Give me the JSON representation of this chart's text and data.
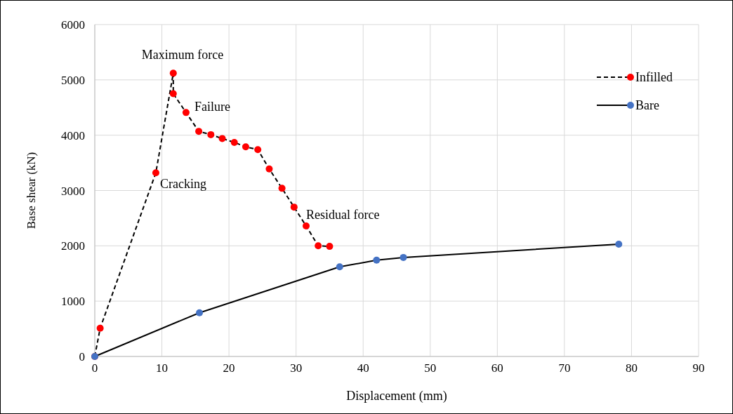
{
  "chart_data": {
    "type": "line",
    "xlabel": "Displacement (mm)",
    "ylabel": "Base shear (kN)",
    "xlim": [
      0,
      90
    ],
    "xticks": [
      0,
      10,
      20,
      30,
      40,
      50,
      60,
      70,
      80,
      90
    ],
    "ylim": [
      0,
      6000
    ],
    "yticks": [
      0,
      1000,
      2000,
      3000,
      4000,
      5000,
      6000
    ],
    "grid": true,
    "legend": "top right",
    "marker": "circle",
    "series": [
      {
        "name": "Infilled",
        "color": "#ff0000",
        "line_style": "dashed",
        "x": [
          0,
          0.8,
          9.1,
          11.7,
          11.7,
          13.6,
          15.5,
          17.3,
          19.0,
          20.8,
          22.5,
          24.3,
          26.0,
          27.9,
          29.7,
          31.5,
          33.3,
          35.0
        ],
        "values": [
          0,
          510,
          3320,
          5120,
          4750,
          4410,
          4070,
          4010,
          3940,
          3870,
          3790,
          3740,
          3390,
          3040,
          2700,
          2360,
          2000,
          1990
        ]
      },
      {
        "name": "Bare",
        "color": "#4472c4",
        "line_style": "solid",
        "x": [
          0,
          15.6,
          36.5,
          42.0,
          46.0,
          78.1
        ],
        "values": [
          0,
          790,
          1620,
          1740,
          1790,
          2030
        ]
      }
    ],
    "annotations": [
      {
        "text": "Maximum force",
        "x": 11.7,
        "y": 5120
      },
      {
        "text": "Failure",
        "x": 13.6,
        "y": 4410
      },
      {
        "text": "Cracking",
        "x": 9.1,
        "y": 3320
      },
      {
        "text": "Residual force",
        "x": 31.5,
        "y": 2360
      }
    ]
  }
}
